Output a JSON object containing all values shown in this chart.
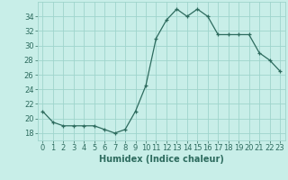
{
  "x": [
    0,
    1,
    2,
    3,
    4,
    5,
    6,
    7,
    8,
    9,
    10,
    11,
    12,
    13,
    14,
    15,
    16,
    17,
    18,
    19,
    20,
    21,
    22,
    23
  ],
  "y": [
    21,
    19.5,
    19,
    19,
    19,
    19,
    18.5,
    18,
    18.5,
    21,
    24.5,
    31,
    33.5,
    35,
    34,
    35,
    34,
    31.5,
    31.5,
    31.5,
    31.5,
    29,
    28,
    26.5
  ],
  "line_color": "#2d6b5e",
  "marker": "+",
  "background_color": "#c8eee8",
  "grid_color": "#9fd4cc",
  "xlabel": "Humidex (Indice chaleur)",
  "xlabel_fontsize": 7,
  "tick_fontsize": 6,
  "ylim": [
    17,
    36
  ],
  "yticks": [
    18,
    20,
    22,
    24,
    26,
    28,
    30,
    32,
    34
  ],
  "xlim": [
    -0.5,
    23.5
  ],
  "xticks": [
    0,
    1,
    2,
    3,
    4,
    5,
    6,
    7,
    8,
    9,
    10,
    11,
    12,
    13,
    14,
    15,
    16,
    17,
    18,
    19,
    20,
    21,
    22,
    23
  ]
}
